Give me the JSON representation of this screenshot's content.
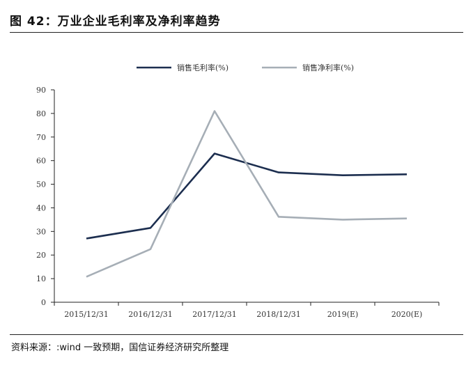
{
  "header": {
    "title": "图 42：万业企业毛利率及净利率趋势"
  },
  "footer": {
    "source": "资料来源：:wind 一致预期，国信证券经济研究所整理"
  },
  "chart_data": {
    "type": "line",
    "categories": [
      "2015/12/31",
      "2016/12/31",
      "2017/12/31",
      "2018/12/31",
      "2019(E)",
      "2020(E)"
    ],
    "series": [
      {
        "name": "销售毛利率(%)",
        "values": [
          27.0,
          31.5,
          63.0,
          55.0,
          53.8,
          54.2
        ],
        "color": "#1c2e4f"
      },
      {
        "name": "销售净利率(%)",
        "values": [
          10.8,
          22.5,
          81.0,
          36.2,
          35.0,
          35.5
        ],
        "color": "#a6aeb6"
      }
    ],
    "ylim": [
      0,
      90
    ],
    "yticks": [
      0,
      10,
      20,
      30,
      40,
      50,
      60,
      70,
      80,
      90
    ],
    "legend_position": "top-center",
    "grid": false
  }
}
